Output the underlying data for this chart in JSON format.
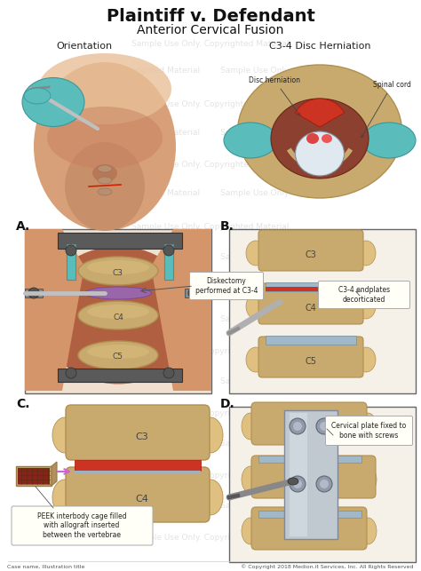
{
  "title": "Plaintiff v. Defendant",
  "subtitle": "Anterior Cervical Fusion",
  "bg_color": "#ffffff",
  "watermark_lines": [
    "Sample Use Only. Copyrighted Material",
    "yrighted Material     Sample Use Only.",
    "Sample Use Only. Copyrighted Material",
    "yrighted Material     Sample Use Only."
  ],
  "panel_top_left_label": "Orientation",
  "panel_top_right_label": "C3-4 Disc Herniation",
  "panel_A_label": "A.",
  "panel_B_label": "B.",
  "panel_C_label": "C.",
  "panel_D_label": "D.",
  "panel_A_annotation": "Diskectomy\nperformed at C3-4",
  "panel_B_annotation": "C3-4 endplates\ndecorticated",
  "panel_C_annotation": "PEEK interbody cage filled\nwith allograft inserted\nbetween the vertebrae",
  "panel_D_annotation": "Cervical plate fixed to\nbone with screws",
  "disc_herniation_label": "Disc herniation",
  "spinal_cord_label": "Spinal cord",
  "footer_left": "Case name, Illustration title",
  "footer_right": "© Copyright 2018 Medion.it Services, Inc. All Rights Reserved",
  "skin_color": "#d4956a",
  "bone_color": "#c8a96e",
  "bone_light": "#dfc080",
  "bone_shadow": "#b09050",
  "teal_color": "#5bbcbc",
  "teal_dark": "#3a9898",
  "gray_metal": "#a0a8b0",
  "red_disc": "#cc3322",
  "purple_arrow": "#cc66cc",
  "dark_gray": "#444444",
  "annotation_box_color": "#fffff8",
  "watermark_color": "#c8c8c8",
  "watermark_alpha": 0.5,
  "title_fontsize": 14,
  "subtitle_fontsize": 10,
  "panel_label_fontsize": 10,
  "section_label_fontsize": 8,
  "annotation_fontsize": 5.5,
  "footer_fontsize": 4.5
}
